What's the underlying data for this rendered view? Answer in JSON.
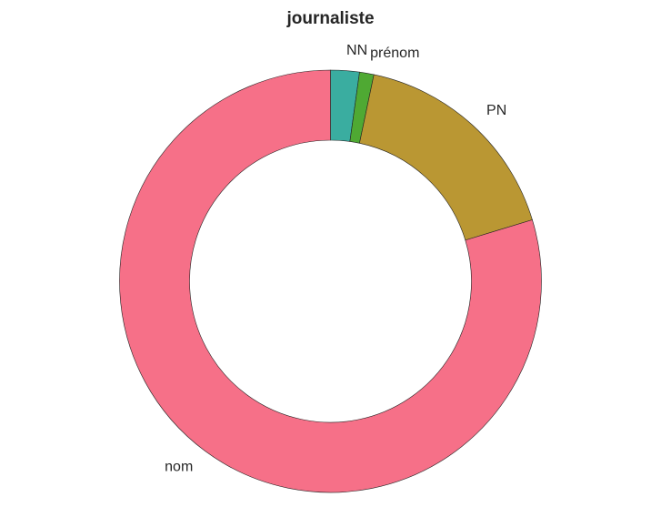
{
  "chart_data": {
    "type": "pie",
    "variant": "donut",
    "title": "journaliste",
    "categories": [
      "NN",
      "prénom",
      "PN",
      "nom"
    ],
    "values": [
      2.2,
      1.1,
      17.0,
      79.7
    ],
    "unit": "percent",
    "colors": [
      "#3aada0",
      "#4fa933",
      "#ba9733",
      "#f67088"
    ],
    "start_angle_deg": 90,
    "direction": "clockwise",
    "legend": "none",
    "edge_color": "#222222"
  }
}
